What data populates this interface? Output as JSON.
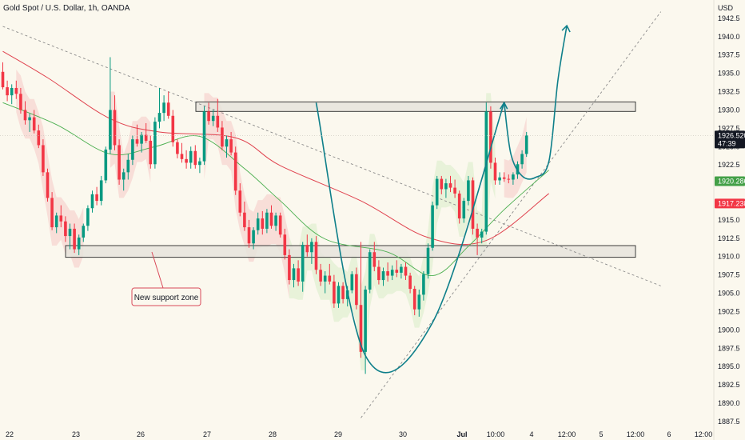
{
  "chart_data": {
    "type": "candlestick",
    "title": "Gold Spot / U.S. Dollar, 1h, OANDA",
    "currency": "USD",
    "y_ticks": [
      1887.5,
      1890,
      1892.5,
      1895,
      1897.5,
      1900,
      1902.5,
      1905,
      1907.5,
      1910,
      1912.5,
      1915,
      1917.5,
      1920,
      1922.5,
      1925,
      1927.5,
      1930,
      1932.5,
      1935,
      1937.5,
      1940,
      1942.5
    ],
    "ylim": [
      1886.4,
      1945.0
    ],
    "x_ticks": [
      "22",
      "23",
      "26",
      "27",
      "28",
      "29",
      "30",
      "Jul",
      "10:00",
      "4",
      "12:00",
      "5",
      "12:00",
      "6",
      "12:00"
    ],
    "price_labels": [
      {
        "value": 1926.52,
        "text": "1926.520",
        "sub": "47:39",
        "color": "#131722"
      },
      {
        "value": 1920.286,
        "text": "1920.286",
        "color": "#43a047"
      },
      {
        "value": 1917.238,
        "text": "1917.238",
        "color": "#f23645"
      }
    ],
    "zones": [
      {
        "from": 1929.8,
        "to": 1931.1
      },
      {
        "from": 1909.9,
        "to": 1911.5
      }
    ],
    "annotation": "New support zone",
    "candles": [
      [
        1935.2,
        1936.5,
        1932.8,
        1933.1
      ],
      [
        1933.1,
        1934.0,
        1931.2,
        1932.0
      ],
      [
        1932.0,
        1933.5,
        1930.8,
        1933.0
      ],
      [
        1933.0,
        1934.0,
        1931.5,
        1932.2
      ],
      [
        1932.2,
        1933.0,
        1929.5,
        1930.0
      ],
      [
        1930.0,
        1931.2,
        1928.0,
        1928.6
      ],
      [
        1928.6,
        1929.5,
        1927.0,
        1929.0
      ],
      [
        1929.0,
        1930.0,
        1926.8,
        1927.2
      ],
      [
        1927.2,
        1928.0,
        1924.8,
        1925.2
      ],
      [
        1925.2,
        1926.0,
        1921.0,
        1921.5
      ],
      [
        1921.5,
        1922.0,
        1917.5,
        1918.0
      ],
      [
        1918.0,
        1918.8,
        1913.6,
        1914.0
      ],
      [
        1914.0,
        1916.0,
        1913.2,
        1915.6
      ],
      [
        1915.6,
        1917.0,
        1914.0,
        1914.8
      ],
      [
        1914.8,
        1915.5,
        1912.0,
        1912.8
      ],
      [
        1912.8,
        1914.5,
        1911.0,
        1913.8
      ],
      [
        1913.8,
        1914.5,
        1910.5,
        1911.0
      ],
      [
        1911.0,
        1913.0,
        1910.2,
        1912.6
      ],
      [
        1912.6,
        1914.5,
        1912.0,
        1914.2
      ],
      [
        1914.2,
        1917.0,
        1913.5,
        1916.6
      ],
      [
        1916.6,
        1919.0,
        1916.0,
        1918.5
      ],
      [
        1918.5,
        1919.5,
        1917.0,
        1917.6
      ],
      [
        1917.6,
        1921.0,
        1917.0,
        1920.4
      ],
      [
        1920.4,
        1925.0,
        1920.0,
        1924.6
      ],
      [
        1924.6,
        1937.2,
        1924.0,
        1930.0
      ],
      [
        1930.0,
        1932.0,
        1924.5,
        1925.2
      ],
      [
        1925.2,
        1926.0,
        1919.8,
        1920.5
      ],
      [
        1920.5,
        1922.0,
        1919.0,
        1921.5
      ],
      [
        1921.5,
        1924.0,
        1920.5,
        1923.2
      ],
      [
        1923.2,
        1926.5,
        1922.5,
        1926.0
      ],
      [
        1926.0,
        1928.0,
        1925.0,
        1925.4
      ],
      [
        1925.4,
        1927.0,
        1924.2,
        1926.6
      ],
      [
        1926.6,
        1928.2,
        1925.5,
        1925.8
      ],
      [
        1925.8,
        1926.5,
        1922.0,
        1922.6
      ],
      [
        1922.6,
        1929.0,
        1922.0,
        1928.4
      ],
      [
        1928.4,
        1933.0,
        1927.5,
        1929.6
      ],
      [
        1929.6,
        1932.0,
        1928.5,
        1931.0
      ],
      [
        1931.0,
        1932.5,
        1928.8,
        1929.2
      ],
      [
        1929.2,
        1930.0,
        1925.0,
        1925.6
      ],
      [
        1925.6,
        1926.0,
        1923.4,
        1924.0
      ],
      [
        1924.0,
        1925.5,
        1922.8,
        1923.3
      ],
      [
        1923.3,
        1924.5,
        1922.0,
        1922.8
      ],
      [
        1922.8,
        1925.0,
        1922.0,
        1924.4
      ],
      [
        1924.4,
        1925.2,
        1922.0,
        1922.5
      ],
      [
        1922.5,
        1923.5,
        1921.4,
        1923.0
      ],
      [
        1923.0,
        1930.5,
        1922.5,
        1929.8
      ],
      [
        1929.8,
        1931.0,
        1928.0,
        1928.5
      ],
      [
        1928.5,
        1930.0,
        1927.8,
        1929.2
      ],
      [
        1929.2,
        1931.5,
        1927.0,
        1927.6
      ],
      [
        1927.6,
        1928.5,
        1924.5,
        1925.0
      ],
      [
        1925.0,
        1926.5,
        1923.5,
        1926.0
      ],
      [
        1926.0,
        1927.0,
        1923.8,
        1924.2
      ],
      [
        1924.2,
        1925.0,
        1918.4,
        1919.0
      ],
      [
        1919.0,
        1920.0,
        1915.5,
        1916.0
      ],
      [
        1916.0,
        1917.5,
        1913.5,
        1914.0
      ],
      [
        1914.0,
        1915.0,
        1911.2,
        1911.8
      ],
      [
        1911.8,
        1914.0,
        1911.0,
        1913.6
      ],
      [
        1913.6,
        1916.0,
        1913.0,
        1915.2
      ],
      [
        1915.2,
        1916.2,
        1913.0,
        1913.8
      ],
      [
        1913.8,
        1916.5,
        1913.2,
        1916.0
      ],
      [
        1916.0,
        1917.0,
        1913.8,
        1914.2
      ],
      [
        1914.2,
        1916.0,
        1913.5,
        1915.6
      ],
      [
        1915.6,
        1916.0,
        1912.6,
        1913.0
      ],
      [
        1913.0,
        1913.8,
        1909.6,
        1910.2
      ],
      [
        1910.2,
        1911.0,
        1906.2,
        1906.8
      ],
      [
        1906.8,
        1909.0,
        1905.8,
        1908.4
      ],
      [
        1908.4,
        1909.5,
        1906.0,
        1906.6
      ],
      [
        1906.6,
        1912.0,
        1905.2,
        1911.6
      ],
      [
        1911.6,
        1913.0,
        1910.0,
        1910.6
      ],
      [
        1910.6,
        1912.5,
        1909.0,
        1912.0
      ],
      [
        1912.0,
        1912.8,
        1907.6,
        1908.2
      ],
      [
        1908.2,
        1909.0,
        1906.0,
        1906.6
      ],
      [
        1906.6,
        1908.0,
        1905.0,
        1907.4
      ],
      [
        1907.4,
        1909.0,
        1906.2,
        1906.6
      ],
      [
        1906.6,
        1907.5,
        1903.0,
        1903.6
      ],
      [
        1903.6,
        1906.5,
        1903.0,
        1906.0
      ],
      [
        1906.0,
        1906.5,
        1903.6,
        1904.2
      ],
      [
        1904.2,
        1906.0,
        1903.2,
        1905.4
      ],
      [
        1905.4,
        1908.0,
        1905.0,
        1907.6
      ],
      [
        1907.6,
        1908.5,
        1902.8,
        1903.4
      ],
      [
        1903.4,
        1912.0,
        1896.2,
        1897.0
      ],
      [
        1897.0,
        1906.0,
        1894.0,
        1905.5
      ],
      [
        1905.5,
        1911.0,
        1905.0,
        1910.6
      ],
      [
        1910.6,
        1912.0,
        1908.0,
        1908.6
      ],
      [
        1908.6,
        1909.5,
        1906.2,
        1906.8
      ],
      [
        1906.8,
        1908.5,
        1906.0,
        1908.0
      ],
      [
        1908.0,
        1909.2,
        1906.6,
        1907.4
      ],
      [
        1907.4,
        1908.8,
        1906.8,
        1908.2
      ],
      [
        1908.2,
        1909.5,
        1907.2,
        1907.8
      ],
      [
        1907.8,
        1909.0,
        1907.0,
        1908.6
      ],
      [
        1908.6,
        1909.2,
        1906.8,
        1907.4
      ],
      [
        1907.4,
        1907.8,
        1905.0,
        1905.6
      ],
      [
        1905.6,
        1906.0,
        1902.0,
        1902.8
      ],
      [
        1902.8,
        1905.5,
        1901.8,
        1904.8
      ],
      [
        1904.8,
        1908.0,
        1904.0,
        1907.6
      ],
      [
        1907.6,
        1911.8,
        1907.0,
        1911.2
      ],
      [
        1911.2,
        1917.5,
        1910.8,
        1917.0
      ],
      [
        1917.0,
        1921.0,
        1916.5,
        1920.6
      ],
      [
        1920.6,
        1921.0,
        1918.5,
        1919.2
      ],
      [
        1919.2,
        1920.6,
        1918.0,
        1920.0
      ],
      [
        1920.0,
        1921.0,
        1918.8,
        1919.4
      ],
      [
        1919.4,
        1920.5,
        1918.0,
        1918.6
      ],
      [
        1918.6,
        1919.0,
        1914.5,
        1915.2
      ],
      [
        1915.2,
        1918.0,
        1914.6,
        1917.6
      ],
      [
        1917.6,
        1921.0,
        1917.0,
        1920.4
      ],
      [
        1920.4,
        1920.8,
        1913.0,
        1913.8
      ],
      [
        1913.8,
        1914.5,
        1910.2,
        1912.6
      ],
      [
        1912.6,
        1913.8,
        1911.8,
        1913.4
      ],
      [
        1913.4,
        1931.0,
        1913.0,
        1929.8
      ],
      [
        1929.8,
        1930.5,
        1922.0,
        1922.8
      ],
      [
        1922.8,
        1923.5,
        1919.8,
        1920.4
      ],
      [
        1920.4,
        1921.5,
        1919.8,
        1920.8
      ],
      [
        1920.8,
        1921.5,
        1920.2,
        1920.6
      ],
      [
        1920.6,
        1921.2,
        1920.0,
        1920.5
      ],
      [
        1920.5,
        1921.5,
        1919.8,
        1921.2
      ],
      [
        1921.2,
        1923.0,
        1920.6,
        1922.6
      ],
      [
        1922.6,
        1924.5,
        1922.0,
        1924.0
      ],
      [
        1924.0,
        1927.0,
        1923.6,
        1926.52
      ]
    ],
    "ma_red": [
      [
        0,
        1938
      ],
      [
        10,
        1934.4
      ],
      [
        24,
        1928.8
      ],
      [
        35,
        1927
      ],
      [
        52,
        1926.2
      ],
      [
        62,
        1922.4
      ],
      [
        80,
        1917.6
      ],
      [
        95,
        1912.6
      ],
      [
        108,
        1912.2
      ],
      [
        122,
        1918.6
      ]
    ],
    "ma_green": [
      [
        0,
        1931
      ],
      [
        12,
        1928
      ],
      [
        24,
        1924
      ],
      [
        34,
        1925
      ],
      [
        44,
        1926.4
      ],
      [
        54,
        1922
      ],
      [
        62,
        1917.6
      ],
      [
        72,
        1912.4
      ],
      [
        86,
        1910.6
      ],
      [
        96,
        1907.4
      ],
      [
        104,
        1911.4
      ],
      [
        112,
        1916.4
      ],
      [
        122,
        1921.8
      ]
    ],
    "cup_curve": [
      [
        70,
        1931.0
      ],
      [
        81,
        1896.5
      ],
      [
        96,
        1901.0
      ],
      [
        112,
        1931.0
      ]
    ],
    "handle_curve": [
      [
        112,
        1931.0
      ],
      [
        113.5,
        1924.0
      ],
      [
        116,
        1921.0
      ],
      [
        119,
        1920.8
      ],
      [
        122,
        1923.0
      ],
      [
        124,
        1934.0
      ],
      [
        126,
        1941.5
      ]
    ],
    "trend_upper": [
      [
        0,
        1941.4
      ],
      [
        147,
        1906.0
      ]
    ],
    "trend_lower": [
      [
        80,
        1888.0
      ],
      [
        147,
        1943.4
      ]
    ]
  }
}
